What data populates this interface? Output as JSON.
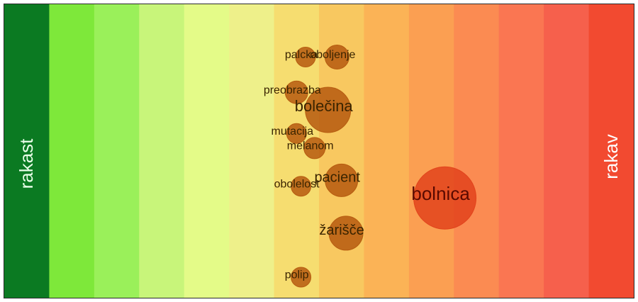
{
  "chart_data": {
    "type": "scatter",
    "left_label": "rakast",
    "right_label": "rakav",
    "background_gradient": [
      "#0b7a22",
      "#7ee83a",
      "#9af05a",
      "#c8f57a",
      "#e4fb88",
      "#eef08a",
      "#f6dd70",
      "#f8c860",
      "#fbb356",
      "#fb9f52",
      "#fb8b52",
      "#fa7652",
      "#f6604c",
      "#f24a30"
    ],
    "x_range": [
      0,
      14
    ],
    "y_range": [
      0,
      10
    ],
    "points": [
      {
        "label": "palcka",
        "x": 6.7,
        "y": 8.2,
        "size": 14,
        "color": "#b3560c",
        "font_size": 16
      },
      {
        "label": "oboljenje",
        "x": 7.4,
        "y": 8.2,
        "size": 17,
        "color": "#b3560c",
        "font_size": 16
      },
      {
        "label": "preobrazba",
        "x": 6.5,
        "y": 7.0,
        "size": 16,
        "color": "#b3560c",
        "font_size": 16
      },
      {
        "label": "bolečina",
        "x": 7.2,
        "y": 6.4,
        "size": 32,
        "color": "#b3560c",
        "font_size": 22
      },
      {
        "label": "mutacija",
        "x": 6.5,
        "y": 5.6,
        "size": 14,
        "color": "#b3560c",
        "font_size": 16
      },
      {
        "label": "melanom",
        "x": 6.9,
        "y": 5.1,
        "size": 15,
        "color": "#b3560c",
        "font_size": 16
      },
      {
        "label": "pacient",
        "x": 7.5,
        "y": 4.0,
        "size": 23,
        "color": "#b3560c",
        "font_size": 20
      },
      {
        "label": "obolelost",
        "x": 6.6,
        "y": 3.8,
        "size": 14,
        "color": "#b3560c",
        "font_size": 16
      },
      {
        "label": "bolnica",
        "x": 9.8,
        "y": 3.4,
        "size": 44,
        "color": "#e0401a",
        "font_size": 26
      },
      {
        "label": "žarišče",
        "x": 7.6,
        "y": 2.2,
        "size": 24,
        "color": "#b3560c",
        "font_size": 20
      },
      {
        "label": "polip",
        "x": 6.6,
        "y": 0.7,
        "size": 14,
        "color": "#b3560c",
        "font_size": 16
      }
    ]
  }
}
